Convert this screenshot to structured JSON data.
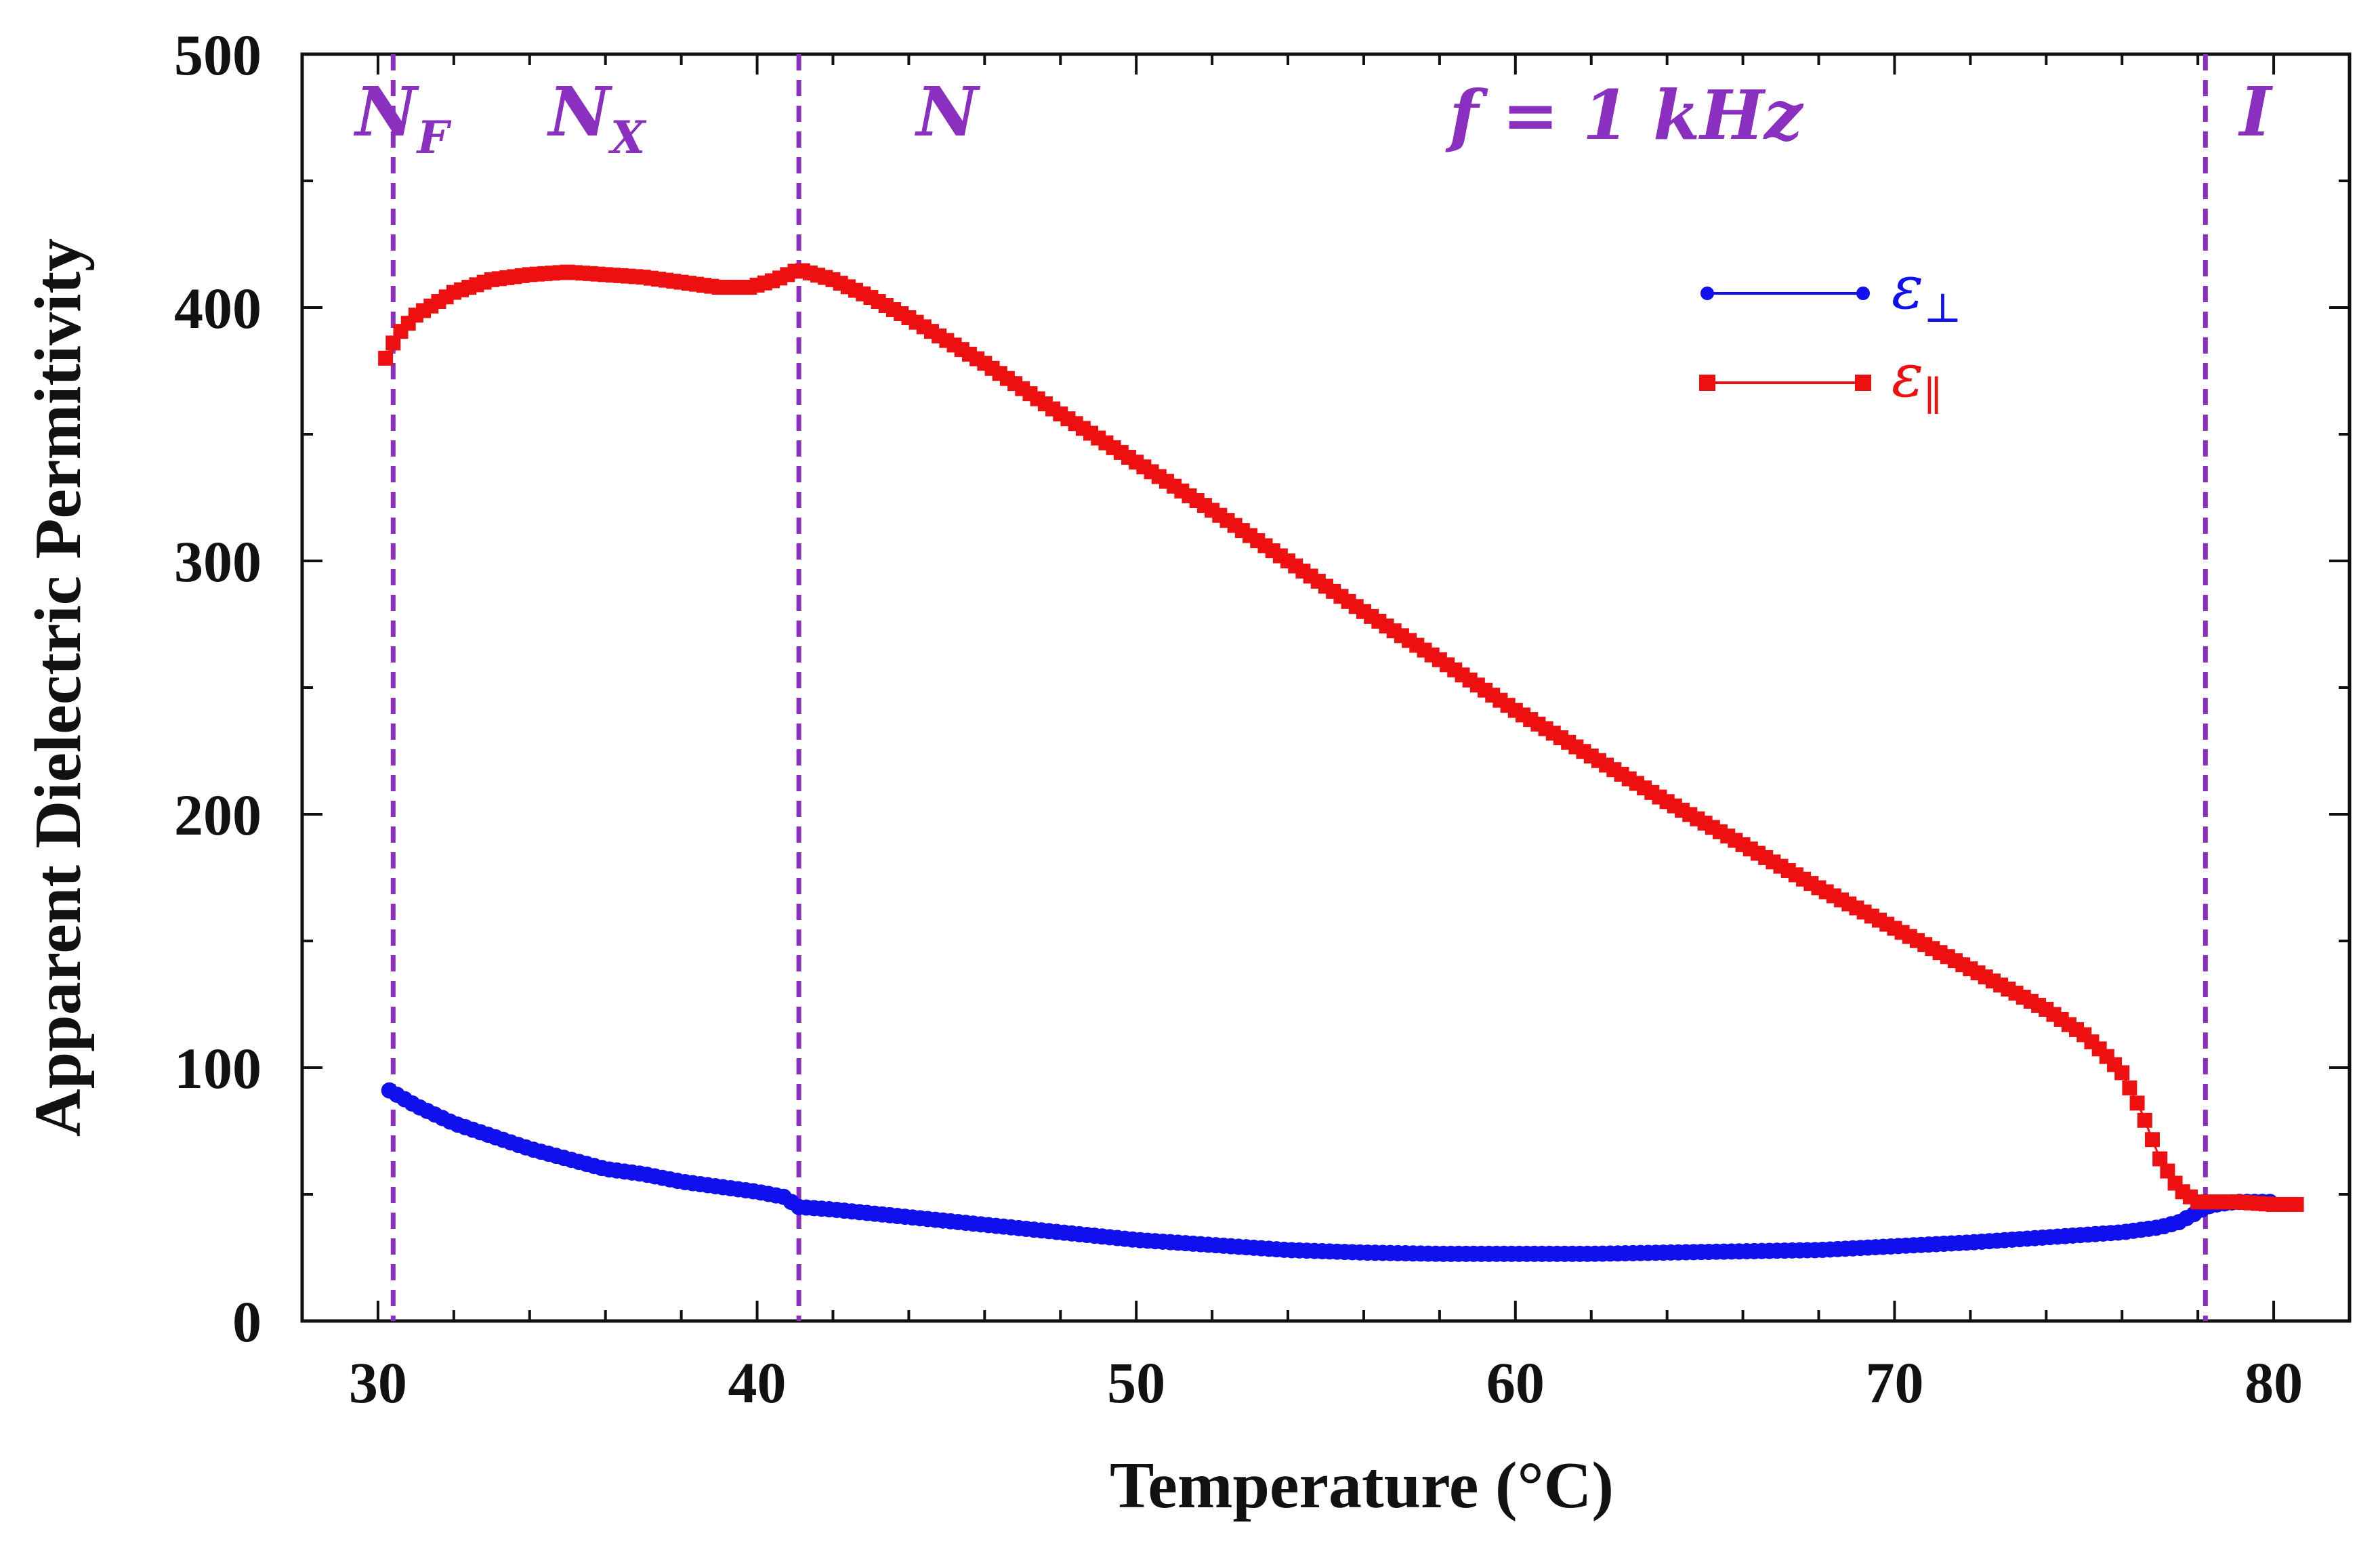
{
  "chart_data": {
    "type": "line",
    "title": "",
    "xlabel": "Temperature (°C)",
    "ylabel": "Apparent Dielectric Permitivity",
    "xlim": [
      28,
      82
    ],
    "ylim": [
      0,
      500
    ],
    "xticks": [
      30,
      40,
      50,
      60,
      70,
      80
    ],
    "yticks": [
      0,
      100,
      200,
      300,
      400,
      500
    ],
    "x_tick_labels": [
      "30",
      "40",
      "50",
      "60",
      "70",
      "80"
    ],
    "y_tick_labels": [
      "0",
      "100",
      "200",
      "300",
      "400",
      "500"
    ],
    "annotation": {
      "main": "f = 1 kHz"
    },
    "phase_boundaries": [
      30.4,
      41.1,
      78.2
    ],
    "phases": [
      {
        "main": "N",
        "sub": "F",
        "x": 29.4
      },
      {
        "main": "N",
        "sub": "X",
        "x": 34.5
      },
      {
        "main": "N",
        "sub": "",
        "x": 44.2
      },
      {
        "main": "I",
        "sub": "",
        "x": 79.1
      }
    ],
    "legend_position": "upper-right",
    "series": [
      {
        "name": "ε⊥",
        "legend_main": "ε",
        "legend_sub": "⊥",
        "color": "#1010ee",
        "marker": "circle",
        "points": [
          [
            30.3,
            91
          ],
          [
            31,
            85
          ],
          [
            32,
            78
          ],
          [
            33,
            73
          ],
          [
            34,
            68
          ],
          [
            35,
            64
          ],
          [
            36,
            60
          ],
          [
            37,
            58
          ],
          [
            38,
            55
          ],
          [
            39,
            53
          ],
          [
            40,
            51
          ],
          [
            40.7,
            49
          ],
          [
            41.1,
            45
          ],
          [
            42,
            44
          ],
          [
            44,
            41
          ],
          [
            46,
            38
          ],
          [
            48,
            35
          ],
          [
            50,
            32
          ],
          [
            52,
            30
          ],
          [
            54,
            28
          ],
          [
            56,
            27
          ],
          [
            58,
            26.5
          ],
          [
            60,
            26.5
          ],
          [
            62,
            26.5
          ],
          [
            64,
            27
          ],
          [
            66,
            27.5
          ],
          [
            68,
            28
          ],
          [
            70,
            29.5
          ],
          [
            72,
            31
          ],
          [
            74,
            33
          ],
          [
            76,
            35
          ],
          [
            77,
            37
          ],
          [
            77.5,
            39
          ],
          [
            78,
            43
          ],
          [
            78.2,
            45
          ],
          [
            78.5,
            46
          ],
          [
            79,
            47
          ],
          [
            79.5,
            47
          ],
          [
            80,
            47
          ]
        ]
      },
      {
        "name": "ε∥",
        "legend_main": "ε",
        "legend_sub": "∥",
        "color": "#ee1010",
        "marker": "square",
        "points": [
          [
            30.2,
            380
          ],
          [
            30.5,
            389
          ],
          [
            31,
            397
          ],
          [
            32,
            406
          ],
          [
            33,
            411
          ],
          [
            34,
            413
          ],
          [
            35,
            414
          ],
          [
            36,
            413
          ],
          [
            37,
            412
          ],
          [
            38,
            410
          ],
          [
            39,
            408
          ],
          [
            39.8,
            408
          ],
          [
            40.5,
            411
          ],
          [
            41.1,
            415
          ],
          [
            42,
            411
          ],
          [
            43,
            404
          ],
          [
            44,
            396
          ],
          [
            46,
            378
          ],
          [
            48,
            358
          ],
          [
            50,
            339
          ],
          [
            52,
            320
          ],
          [
            54,
            300
          ],
          [
            56,
            280
          ],
          [
            58,
            261
          ],
          [
            60,
            241
          ],
          [
            62,
            223
          ],
          [
            64,
            205
          ],
          [
            66,
            188
          ],
          [
            68,
            171
          ],
          [
            70,
            155
          ],
          [
            72,
            139
          ],
          [
            74,
            123
          ],
          [
            75,
            113
          ],
          [
            75.5,
            106
          ],
          [
            76,
            98
          ],
          [
            76.5,
            83
          ],
          [
            77,
            64
          ],
          [
            77.5,
            52
          ],
          [
            78,
            47
          ],
          [
            78.5,
            47
          ],
          [
            79,
            47
          ],
          [
            80,
            46
          ],
          [
            80.6,
            46
          ]
        ]
      }
    ]
  },
  "colors": {
    "phase_line": "#8a2fbf",
    "axis": "#111111"
  }
}
